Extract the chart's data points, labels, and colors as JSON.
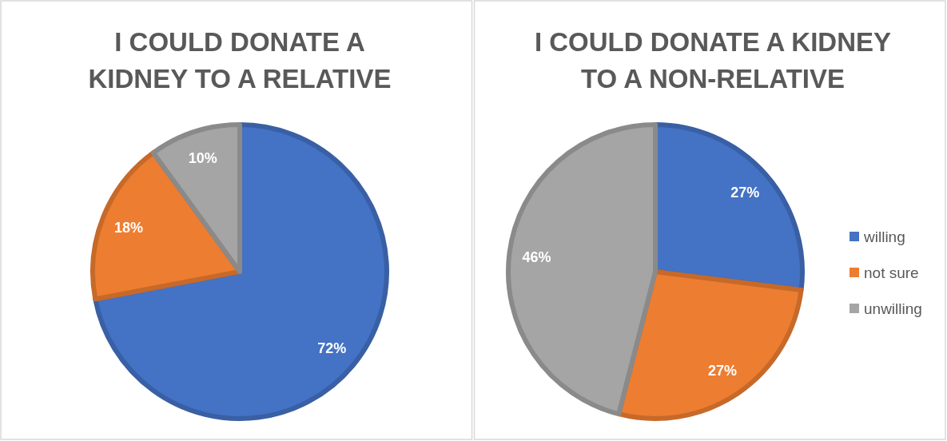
{
  "chart_data": [
    {
      "type": "pie",
      "title": "I COULD DONATE A\nKIDNEY TO A RELATIVE",
      "categories": [
        null,
        null,
        null
      ],
      "values": [
        72,
        18,
        10
      ],
      "value_labels": [
        "72%",
        "18%",
        "10%"
      ],
      "colors": [
        "#4472c4",
        "#ed7d31",
        "#a5a5a5"
      ],
      "legend": false
    },
    {
      "type": "pie",
      "title": "I COULD DONATE A KIDNEY\nTO A NON-RELATIVE",
      "categories": [
        "willing",
        "not sure",
        "unwilling"
      ],
      "values": [
        27,
        27,
        46
      ],
      "value_labels": [
        "27%",
        "27%",
        "46%"
      ],
      "colors": [
        "#4472c4",
        "#ed7d31",
        "#a5a5a5"
      ],
      "legend": "right"
    }
  ]
}
